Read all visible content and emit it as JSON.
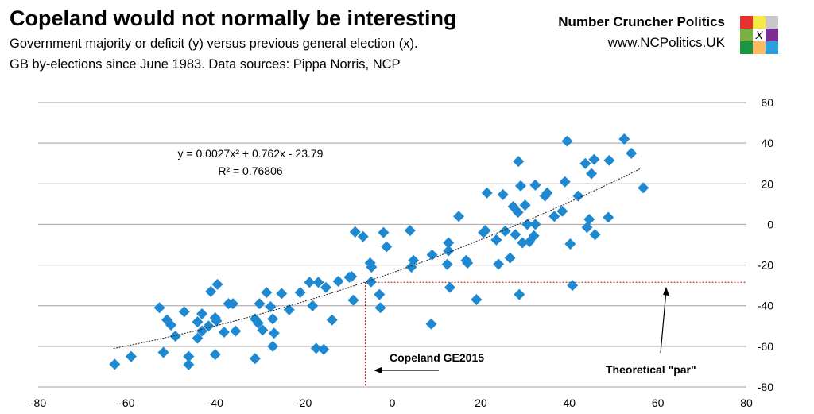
{
  "header": {
    "title": "Copeland would not normally be interesting",
    "subtitle1": "Government majority or deficit (y) versus previous general election (x).",
    "subtitle2": "GB by-elections since June 1983. Data sources: Pippa Norris, NCP",
    "brand": "Number Cruncher Politics",
    "url": "www.NCPolitics.UK",
    "logo_mark": "X",
    "logo_colors": [
      "#e8312f",
      "#f5e942",
      "#c8c8c8",
      "#79b143",
      "#ffffff",
      "#7b2f92",
      "#1a9641",
      "#fdb962",
      "#2b9fe0"
    ]
  },
  "chart_data": {
    "type": "scatter",
    "title": "Copeland would not normally be interesting",
    "xlabel": "Previous general election",
    "ylabel": "Government majority or deficit",
    "xlim": [
      -80,
      80
    ],
    "ylim": [
      -80,
      60
    ],
    "xticks": [
      -80,
      -60,
      -40,
      -20,
      0,
      20,
      40,
      60,
      80
    ],
    "yticks": [
      60,
      40,
      20,
      0,
      -20,
      -40,
      -60,
      -80
    ],
    "grid": "horizontal",
    "marker_color": "#1e88d0",
    "trendline": {
      "type": "polynomial",
      "a": 0.0027,
      "b": 0.762,
      "c": -23.79,
      "xrange": [
        -63,
        56
      ],
      "equation": "y = 0.0027x² + 0.762x - 23.79",
      "r2": "R² = 0.76806"
    },
    "reference": {
      "x": -6.1,
      "y": -28.5,
      "color": "#cc0000"
    },
    "annotations": {
      "copeland": "Copeland GE2015",
      "par": "Theoretical \"par\""
    },
    "points": [
      [
        -62.7,
        -68.8
      ],
      [
        -59,
        -65
      ],
      [
        -52.6,
        -41
      ],
      [
        -51.7,
        -63
      ],
      [
        -50.9,
        -47
      ],
      [
        -50,
        -49.5
      ],
      [
        -49,
        -55
      ],
      [
        -47,
        -43
      ],
      [
        -46,
        -65
      ],
      [
        -46,
        -69
      ],
      [
        -44,
        -56
      ],
      [
        -44,
        -48
      ],
      [
        -43,
        -44
      ],
      [
        -43,
        -52.5
      ],
      [
        -41.5,
        -50
      ],
      [
        -41,
        -33
      ],
      [
        -40,
        -64
      ],
      [
        -40,
        -46
      ],
      [
        -39.5,
        -29.5
      ],
      [
        -39.7,
        -47.5
      ],
      [
        -38,
        -53
      ],
      [
        -37,
        -39
      ],
      [
        -36,
        -39
      ],
      [
        -35.4,
        -52.5
      ],
      [
        -31,
        -46.5
      ],
      [
        -31,
        -66
      ],
      [
        -30.3,
        -48.5
      ],
      [
        -30,
        -39
      ],
      [
        -29.3,
        -52
      ],
      [
        -28.4,
        -33.5
      ],
      [
        -27.5,
        -40.5
      ],
      [
        -27,
        -60
      ],
      [
        -27,
        -46.5
      ],
      [
        -26.7,
        -53.5
      ],
      [
        -25,
        -34
      ],
      [
        -23.3,
        -42
      ],
      [
        -20.8,
        -33.5
      ],
      [
        -18.7,
        -28.5
      ],
      [
        -18,
        -40
      ],
      [
        -17.2,
        -61
      ],
      [
        -16.7,
        -28.5
      ],
      [
        -15.5,
        -61.5
      ],
      [
        -15,
        -31
      ],
      [
        -13.6,
        -47
      ],
      [
        -12.2,
        -28
      ],
      [
        -9.7,
        -26
      ],
      [
        -9.2,
        -25.6
      ],
      [
        -8.8,
        -37.3
      ],
      [
        -8.4,
        -3.7
      ],
      [
        -6.6,
        -6
      ],
      [
        -5,
        -19
      ],
      [
        -4.8,
        -28.3
      ],
      [
        -4.7,
        -21
      ],
      [
        -2.9,
        -34.5
      ],
      [
        -2.7,
        -41
      ],
      [
        -2,
        -4
      ],
      [
        -1.3,
        -11
      ],
      [
        4,
        -3
      ],
      [
        4.3,
        -21
      ],
      [
        4.8,
        -17.7
      ],
      [
        8.8,
        -49
      ],
      [
        9,
        -15
      ],
      [
        12.4,
        -19.7
      ],
      [
        12.7,
        -9
      ],
      [
        12.7,
        -13
      ],
      [
        13,
        -31
      ],
      [
        15,
        4
      ],
      [
        16.7,
        -17.7
      ],
      [
        17,
        -19
      ],
      [
        19,
        -37
      ],
      [
        20.6,
        -4
      ],
      [
        21.4,
        15.5
      ],
      [
        21,
        -3
      ],
      [
        23.5,
        -7.6
      ],
      [
        24,
        -19.6
      ],
      [
        25,
        14.7
      ],
      [
        25.5,
        -3.3
      ],
      [
        26.6,
        -16.5
      ],
      [
        27.3,
        8.8
      ],
      [
        27.8,
        -5
      ],
      [
        28.4,
        6
      ],
      [
        28.5,
        31
      ],
      [
        28.7,
        -34.5
      ],
      [
        29,
        19
      ],
      [
        29.4,
        -9
      ],
      [
        30,
        9.5
      ],
      [
        30.5,
        0
      ],
      [
        31,
        -8.5
      ],
      [
        32,
        -5.6
      ],
      [
        32.3,
        19.4
      ],
      [
        32.3,
        0
      ],
      [
        34.5,
        14
      ],
      [
        35,
        15.5
      ],
      [
        36.6,
        4
      ],
      [
        38.4,
        6.5
      ],
      [
        39,
        21
      ],
      [
        39.5,
        41
      ],
      [
        40.2,
        -9.6
      ],
      [
        40.7,
        -30
      ],
      [
        42,
        14
      ],
      [
        43.6,
        30
      ],
      [
        44,
        -1.5
      ],
      [
        44.5,
        2.5
      ],
      [
        45,
        25
      ],
      [
        45.6,
        32
      ],
      [
        45.8,
        -5
      ],
      [
        49,
        31.5
      ],
      [
        48.8,
        3.5
      ],
      [
        52.4,
        42
      ],
      [
        54,
        35
      ],
      [
        56.7,
        18
      ]
    ]
  }
}
